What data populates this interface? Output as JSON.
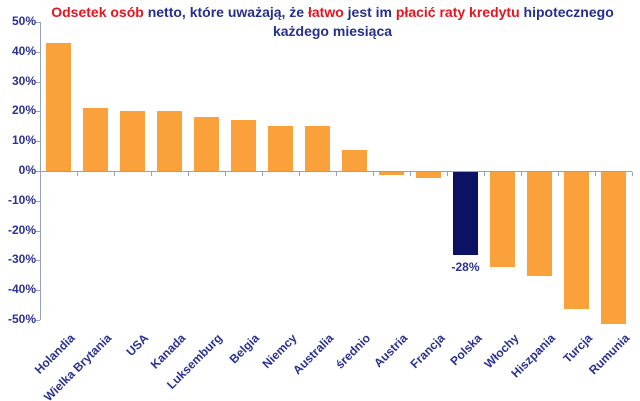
{
  "title": {
    "segments": [
      {
        "text": "Odsetek osób",
        "color": "#e8131d"
      },
      {
        "text": " netto, które uważają,  że ",
        "color": "#252f8f"
      },
      {
        "text": "łatwo",
        "color": "#e8131d"
      },
      {
        "text": " jest im ",
        "color": "#252f8f"
      },
      {
        "text": "płacić raty kredytu",
        "color": "#e8131d"
      },
      {
        "text": " hipotecznego każdego miesiąca",
        "color": "#252f8f"
      }
    ],
    "full_text": "Odsetek osób netto, które uważają,  że łatwo jest im płacić raty kredytu hipotecznego każdego miesiąca"
  },
  "chart_data": {
    "type": "bar",
    "categories": [
      "Holandia",
      "Wielka Brytania",
      "USA",
      "Kanada",
      "Luksemburg",
      "Belgia",
      "Niemcy",
      "Australia",
      "średnio",
      "Austria",
      "Francja",
      "Polska",
      "Włochy",
      "Hiszpania",
      "Turcja",
      "Rumunia"
    ],
    "values": [
      43,
      21,
      20,
      20,
      18,
      17,
      15,
      15,
      7,
      -1,
      -2,
      -28,
      -32,
      -35,
      -46,
      -51
    ],
    "highlight_index": 11,
    "data_labels": [
      {
        "index": 11,
        "text": "-28%"
      }
    ],
    "ytick_labels": [
      "50%",
      "40%",
      "30%",
      "20%",
      "10%",
      "0%",
      "-10%",
      "-20%",
      "-30%",
      "-40%",
      "-50%"
    ],
    "ylim": [
      -50,
      50
    ],
    "ytick_step": 10,
    "xlabel": "",
    "ylabel": "",
    "grid": "off",
    "legend": "none",
    "colors": {
      "bar": "#faa13c",
      "highlight_bar": "#0b1263",
      "axis": "#94a0c4",
      "axis_text": "#2b3194",
      "title_red": "#e8131d",
      "title_navy": "#252f8f"
    }
  }
}
